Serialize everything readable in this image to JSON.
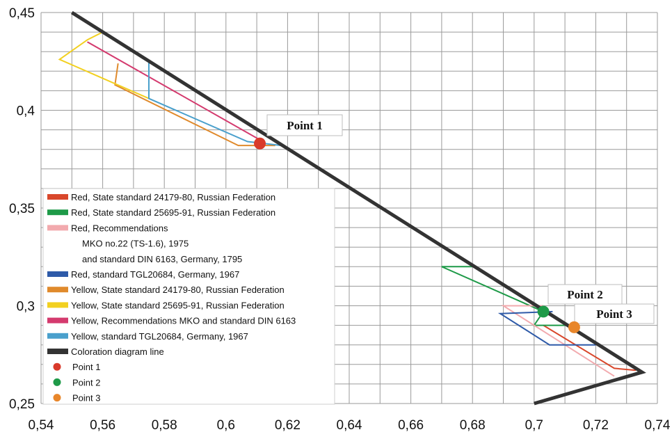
{
  "chart_data": {
    "type": "line",
    "title": "",
    "xlabel": "",
    "ylabel": "",
    "xlim": [
      0.54,
      0.74
    ],
    "ylim": [
      0.25,
      0.45
    ],
    "x_ticks": [
      0.54,
      0.56,
      0.58,
      0.6,
      0.62,
      0.64,
      0.66,
      0.68,
      0.7,
      0.72,
      0.74
    ],
    "x_tick_labels": [
      "0,54",
      "0,56",
      "0,58",
      "0,6",
      "0,62",
      "0,64",
      "0,66",
      "0,68",
      "0,7",
      "0,72",
      "0,74"
    ],
    "y_ticks": [
      0.25,
      0.3,
      0.35,
      0.4,
      0.45
    ],
    "y_tick_labels": [
      "0,25",
      "0,3",
      "0,35",
      "0,4",
      "0,45"
    ],
    "grid": true,
    "grid_x_step": 0.01,
    "grid_y_step": 0.01,
    "legend_position": "middle-left",
    "series": [
      {
        "name": "Red, State standard 24179-80, Russian Federation",
        "color": "#d9472b",
        "points": [
          [
            0.703,
            0.29
          ],
          [
            0.726,
            0.268
          ],
          [
            0.733,
            0.267
          ]
        ]
      },
      {
        "name": "Red, State standard 25695-91, Russian Federation",
        "color": "#1e9a48",
        "points": [
          [
            0.68,
            0.32
          ],
          [
            0.67,
            0.32
          ],
          [
            0.703,
            0.297
          ],
          [
            0.7,
            0.29
          ],
          [
            0.712,
            0.29
          ]
        ]
      },
      {
        "name": "Red, Recommendations MKO no.22 (TS-1.6), 1975 and standard DIN 6163, Germany, 1795",
        "color": "#f2aaae",
        "points": [
          [
            0.703,
            0.3
          ],
          [
            0.69,
            0.3
          ],
          [
            0.71,
            0.28
          ],
          [
            0.726,
            0.264
          ]
        ]
      },
      {
        "name": "Red, standard TGL20684, Germany, 1967",
        "color": "#2e5aa8",
        "points": [
          [
            0.706,
            0.297
          ],
          [
            0.689,
            0.296
          ],
          [
            0.705,
            0.28
          ],
          [
            0.72,
            0.28
          ]
        ]
      },
      {
        "name": "Yellow, State standard 24179-80, Russian Federation",
        "color": "#e08a2c",
        "points": [
          [
            0.565,
            0.424
          ],
          [
            0.564,
            0.413
          ],
          [
            0.604,
            0.382
          ],
          [
            0.616,
            0.382
          ]
        ]
      },
      {
        "name": "Yellow, State standard 25695-91, Russian Federation",
        "color": "#f2d020",
        "points": [
          [
            0.56,
            0.44
          ],
          [
            0.555,
            0.436
          ],
          [
            0.546,
            0.426
          ],
          [
            0.575,
            0.406
          ]
        ]
      },
      {
        "name": "Yellow, Recommendations MKO and standard DIN 6163",
        "color": "#d43a6e",
        "points": [
          [
            0.555,
            0.435
          ],
          [
            0.612,
            0.384
          ]
        ]
      },
      {
        "name": "Yellow, standard TGL20684, Germany, 1967",
        "color": "#4aa0cc",
        "points": [
          [
            0.575,
            0.425
          ],
          [
            0.575,
            0.406
          ],
          [
            0.607,
            0.384
          ],
          [
            0.618,
            0.382
          ]
        ]
      },
      {
        "name": "Coloration diagram line",
        "color": "#333333",
        "points": [
          [
            0.55,
            0.45
          ],
          [
            0.735,
            0.266
          ],
          [
            0.7,
            0.25
          ]
        ]
      }
    ],
    "markers": [
      {
        "name": "Point 1",
        "label": "Point 1",
        "x": 0.611,
        "y": 0.383,
        "color": "#d93a2b"
      },
      {
        "name": "Point 2",
        "label": "Point 2",
        "x": 0.703,
        "y": 0.297,
        "color": "#1e9a48"
      },
      {
        "name": "Point 3",
        "label": "Point 3",
        "x": 0.713,
        "y": 0.289,
        "color": "#e8862a"
      }
    ],
    "legend": {
      "entries": [
        {
          "text": "Red, State standard 24179-80, Russian Federation",
          "color": "#d9472b",
          "kind": "line"
        },
        {
          "text": "Red, State standard 25695-91, Russian Federation",
          "color": "#1e9a48",
          "kind": "line"
        },
        {
          "text": "Red, Recommendations",
          "color": "#f2aaae",
          "kind": "line"
        },
        {
          "text": "MKO no.22 (TS-1.6), 1975",
          "color": "",
          "kind": "none"
        },
        {
          "text": "and standard DIN 6163, Germany, 1795",
          "color": "",
          "kind": "none"
        },
        {
          "text": "Red, standard TGL20684, Germany, 1967",
          "color": "#2e5aa8",
          "kind": "line"
        },
        {
          "text": "Yellow, State standard 24179-80, Russian Federation",
          "color": "#e08a2c",
          "kind": "line"
        },
        {
          "text": "Yellow, State standard 25695-91, Russian Federation",
          "color": "#f2d020",
          "kind": "line"
        },
        {
          "text": "Yellow, Recommendations MKO and standard DIN 6163",
          "color": "#d43a6e",
          "kind": "line"
        },
        {
          "text": "Yellow, standard TGL20684, Germany, 1967",
          "color": "#4aa0cc",
          "kind": "line"
        },
        {
          "text": "Coloration diagram line",
          "color": "#333333",
          "kind": "line"
        },
        {
          "text": "Point 1",
          "color": "#d93a2b",
          "kind": "dot"
        },
        {
          "text": "Point 2",
          "color": "#1e9a48",
          "kind": "dot"
        },
        {
          "text": "Point 3",
          "color": "#e8862a",
          "kind": "dot"
        }
      ]
    }
  }
}
